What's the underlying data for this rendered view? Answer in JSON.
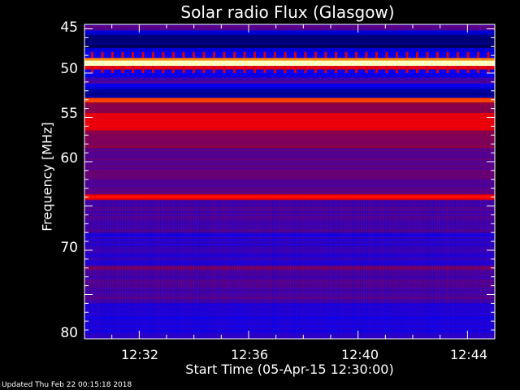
{
  "chart_data": {
    "type": "heatmap",
    "title": "Solar radio Flux (Glasgow)",
    "xlabel": "Start Time (05-Apr-15 12:30:00)",
    "ylabel": "Frequency [MHz]",
    "x_ticks": [
      "12:32",
      "12:36",
      "12:40",
      "12:44"
    ],
    "x_range": [
      "12:30",
      "12:45"
    ],
    "y_ticks": [
      45,
      50,
      55,
      60,
      70,
      80
    ],
    "ylim": [
      80,
      44.5
    ],
    "colormap": [
      "#000040",
      "#0000ff",
      "#600080",
      "#a00030",
      "#ff0000",
      "#ff9000",
      "#ffffc0"
    ],
    "bands": [
      {
        "from": 44.5,
        "to": 45.2,
        "level": 0.32
      },
      {
        "from": 45.2,
        "to": 45.7,
        "level": 0.12
      },
      {
        "from": 45.7,
        "to": 47.2,
        "level": 0.04
      },
      {
        "from": 47.2,
        "to": 48.3,
        "level": 0.15
      },
      {
        "from": 48.3,
        "to": 48.6,
        "level": 0.85
      },
      {
        "from": 48.6,
        "to": 49.2,
        "level": 1.0
      },
      {
        "from": 49.2,
        "to": 49.6,
        "level": 0.6
      },
      {
        "from": 49.6,
        "to": 50.5,
        "level": 0.18
      },
      {
        "from": 50.5,
        "to": 51.2,
        "level": 0.28
      },
      {
        "from": 51.2,
        "to": 51.8,
        "level": 0.16
      },
      {
        "from": 51.8,
        "to": 52.8,
        "level": 0.08
      },
      {
        "from": 52.8,
        "to": 53.3,
        "level": 0.75
      },
      {
        "from": 53.3,
        "to": 54.5,
        "level": 0.45
      },
      {
        "from": 54.5,
        "to": 56.5,
        "level": 0.62
      },
      {
        "from": 56.5,
        "to": 58.5,
        "level": 0.42
      },
      {
        "from": 58.5,
        "to": 63.7,
        "level": 0.33
      },
      {
        "from": 63.7,
        "to": 64.3,
        "level": 0.66
      },
      {
        "from": 64.3,
        "to": 68.0,
        "level": 0.3
      },
      {
        "from": 68.0,
        "to": 71.8,
        "level": 0.24
      },
      {
        "from": 71.8,
        "to": 72.2,
        "level": 0.42
      },
      {
        "from": 72.2,
        "to": 76.0,
        "level": 0.3
      },
      {
        "from": 76.0,
        "to": 80.0,
        "level": 0.22
      }
    ]
  },
  "footer": {
    "updated": "Updated Thu Feb 22 00:15:18 2018"
  }
}
